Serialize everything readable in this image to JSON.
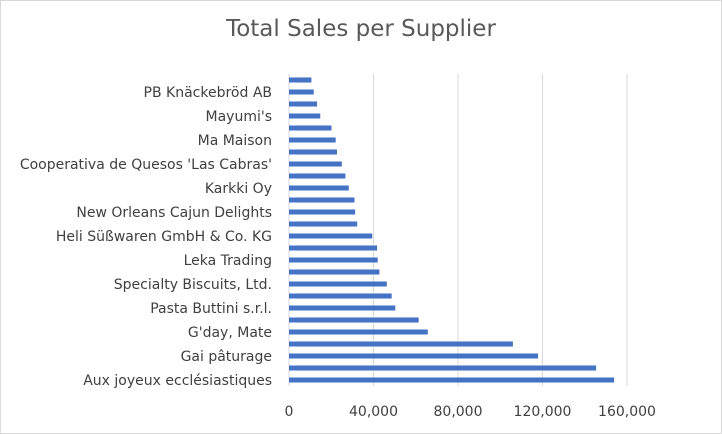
{
  "chart_data": {
    "type": "bar",
    "orientation": "horizontal",
    "title": "Total Sales per Supplier",
    "xlabel": "",
    "ylabel": "",
    "xlim": [
      0,
      160000
    ],
    "x_ticks": [
      "0",
      "40,000",
      "80,000",
      "120,000",
      "160,000"
    ],
    "grid": true,
    "legend": "none",
    "bar_color": "#4472c4",
    "categories": [
      "Aux joyeux ecclésiastiques",
      "",
      "Gai pâturage",
      "",
      "G'day, Mate",
      "",
      "Pasta Buttini s.r.l.",
      "",
      "Specialty Biscuits, Ltd.",
      "",
      "Leka Trading",
      "",
      "Heli Süßwaren GmbH & Co. KG",
      "",
      "New Orleans Cajun Delights",
      "",
      "Karkki Oy",
      "",
      "Cooperativa de Quesos 'Las Cabras'",
      "",
      "Ma Maison",
      "",
      "Mayumi's",
      "",
      "PB Knäckebröd AB",
      ""
    ],
    "values": [
      153900,
      145400,
      117900,
      106000,
      65700,
      61400,
      50300,
      48600,
      46300,
      42800,
      42000,
      41700,
      39400,
      32300,
      31300,
      31000,
      28300,
      26700,
      25000,
      22700,
      22100,
      20100,
      14800,
      13300,
      11700,
      10600
    ]
  }
}
